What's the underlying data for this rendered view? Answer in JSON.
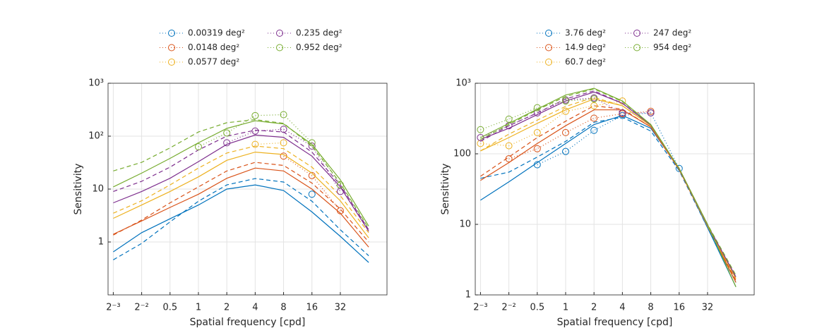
{
  "chart_data": [
    {
      "type": "line",
      "xlabel": "Spatial frequency [cpd]",
      "ylabel": "Sensitivity",
      "xscale": "log",
      "yscale": "log",
      "grid": true,
      "legend": "top",
      "xlim": [
        0.11,
        100
      ],
      "ylim": [
        0.1,
        1000
      ],
      "xticks": [
        {
          "value": 0.125,
          "label": "2⁻³"
        },
        {
          "value": 0.25,
          "label": "2⁻²"
        },
        0.5,
        1,
        2,
        4,
        8,
        16,
        32
      ],
      "yticks": [
        1,
        10,
        {
          "value": 100,
          "label": "10²"
        },
        {
          "value": 1000,
          "label": "10³"
        }
      ],
      "x": [
        0.125,
        0.25,
        0.5,
        1,
        2,
        4,
        8,
        16,
        32,
        64
      ],
      "series": [
        {
          "name": "0.00319 deg²",
          "color": "#0072bd",
          "points_x": [
            16
          ],
          "points_values": [
            8
          ],
          "fit_solid": [
            0.65,
            1.5,
            2.75,
            5,
            10,
            12,
            9.4,
            3.7,
            1.28,
            0.41
          ],
          "fit_dashed": [
            0.46,
            0.94,
            2.4,
            5.9,
            12,
            15.8,
            13.6,
            5.9,
            1.7,
            0.55
          ]
        },
        {
          "name": "0.0148 deg²",
          "color": "#d95319",
          "points_x": [
            8,
            16,
            32
          ],
          "points_values": [
            42,
            18,
            3.9
          ],
          "fit_solid": [
            1.4,
            2.5,
            4.5,
            8,
            16,
            25,
            22,
            10,
            3.5,
            0.8
          ],
          "fit_dashed": [
            1.35,
            2.6,
            5.5,
            11,
            22,
            32,
            28,
            13,
            4.2,
            1.0
          ]
        },
        {
          "name": "0.0577 deg²",
          "color": "#edb120",
          "points_x": [
            4,
            8
          ],
          "points_values": [
            70,
            75
          ],
          "fit_solid": [
            2.8,
            5,
            9,
            17,
            35,
            50,
            45,
            20,
            6,
            1.2
          ],
          "fit_dashed": [
            3.5,
            6,
            12,
            25,
            48,
            65,
            58,
            26,
            7.5,
            1.5
          ]
        },
        {
          "name": "0.235 deg²",
          "color": "#7e2f8e",
          "points_x": [
            2,
            4,
            8,
            16,
            32
          ],
          "points_values": [
            75,
            125,
            135,
            65,
            9
          ],
          "fit_solid": [
            5.5,
            9,
            16,
            33,
            70,
            105,
            95,
            42,
            11,
            1.6
          ],
          "fit_dashed": [
            9,
            14,
            26,
            55,
            100,
            130,
            120,
            50,
            12,
            1.7
          ]
        },
        {
          "name": "0.952 deg²",
          "color": "#77ac30",
          "points_x": [
            1,
            2,
            4,
            8,
            16,
            32
          ],
          "points_values": [
            63,
            115,
            245,
            255,
            75,
            12
          ],
          "fit_solid": [
            11,
            20,
            38,
            75,
            140,
            195,
            170,
            70,
            15,
            2.0
          ],
          "fit_dashed": [
            22,
            32,
            60,
            120,
            180,
            205,
            175,
            65,
            13,
            1.8
          ]
        }
      ]
    },
    {
      "type": "line",
      "xlabel": "Spatial frequency [cpd]",
      "ylabel": "Sensitivity",
      "xscale": "log",
      "yscale": "log",
      "grid": true,
      "legend": "top",
      "xlim": [
        0.11,
        100
      ],
      "ylim": [
        1,
        1000
      ],
      "xticks": [
        {
          "value": 0.125,
          "label": "2⁻³"
        },
        {
          "value": 0.25,
          "label": "2⁻²"
        },
        0.5,
        1,
        2,
        4,
        8,
        16,
        32
      ],
      "yticks": [
        1,
        10,
        100,
        {
          "value": 1000,
          "label": "10³"
        }
      ],
      "x": [
        0.125,
        0.25,
        0.5,
        1,
        2,
        4,
        8,
        16,
        32,
        64
      ],
      "series": [
        {
          "name": "3.76 deg²",
          "color": "#0072bd",
          "points_x": [
            0.5,
            1,
            2,
            4,
            8,
            16
          ],
          "points_values": [
            70,
            108,
            215,
            350,
            380,
            62
          ],
          "fit_solid": [
            22,
            40,
            75,
            140,
            260,
            350,
            230,
            62,
            9,
            1.3
          ],
          "fit_dashed": [
            45,
            55,
            90,
            150,
            280,
            330,
            210,
            58,
            9,
            1.5
          ]
        },
        {
          "name": "14.9 deg²",
          "color": "#d95319",
          "points_x": [
            0.25,
            0.5,
            1,
            2,
            4,
            8
          ],
          "points_values": [
            85,
            118,
            200,
            320,
            370,
            400
          ],
          "fit_solid": [
            42,
            75,
            140,
            250,
            420,
            420,
            240,
            60,
            9.5,
            1.5
          ],
          "fit_dashed": [
            48,
            90,
            170,
            290,
            480,
            430,
            240,
            60,
            9.5,
            1.6
          ]
        },
        {
          "name": "60.7 deg²",
          "color": "#edb120",
          "points_x": [
            0.125,
            0.25,
            0.5,
            1,
            2,
            4
          ],
          "points_values": [
            140,
            130,
            200,
            400,
            480,
            560
          ],
          "fit_solid": [
            110,
            170,
            270,
            420,
            600,
            480,
            250,
            62,
            9.5,
            1.7
          ],
          "fit_dashed": [
            110,
            190,
            300,
            470,
            630,
            480,
            250,
            62,
            9.5,
            1.7
          ]
        },
        {
          "name": "247 deg²",
          "color": "#7e2f8e",
          "points_x": [
            0.125,
            0.25,
            0.5,
            1,
            2,
            4,
            8
          ],
          "points_values": [
            170,
            250,
            380,
            580,
            620,
            380,
            380
          ],
          "fit_solid": [
            160,
            230,
            360,
            560,
            750,
            520,
            255,
            62,
            9.8,
            1.8
          ],
          "fit_dashed": [
            150,
            250,
            380,
            600,
            780,
            520,
            255,
            62,
            9.8,
            1.8
          ]
        },
        {
          "name": "954 deg²",
          "color": "#77ac30",
          "points_x": [
            0.125,
            0.25,
            0.5,
            1,
            2
          ],
          "points_values": [
            220,
            310,
            450,
            560,
            600
          ],
          "fit_solid": [
            170,
            270,
            430,
            680,
            850,
            560,
            260,
            62,
            10,
            1.3
          ],
          "fit_dashed": [
            160,
            260,
            420,
            650,
            830,
            550,
            258,
            62,
            10,
            1.9
          ]
        }
      ]
    }
  ]
}
